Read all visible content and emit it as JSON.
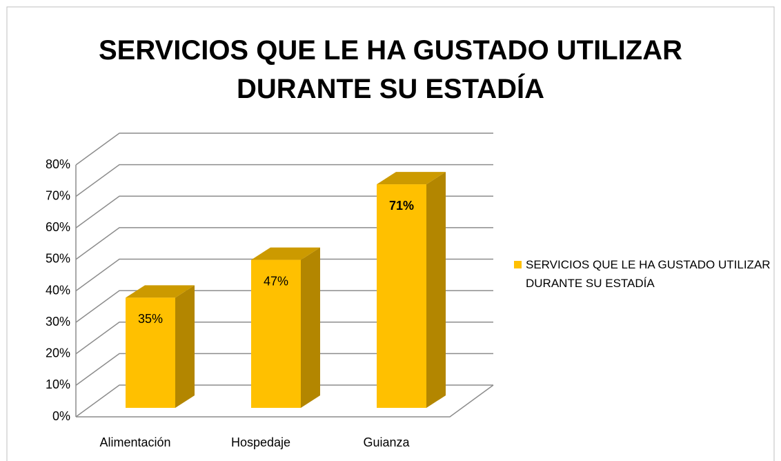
{
  "chart_data": {
    "type": "bar3d",
    "title": "SERVICIOS QUE LE HA GUSTADO UTILIZAR DURANTE SU ESTADÍA",
    "categories": [
      "Alimentación",
      "Hospedaje",
      "Guianza"
    ],
    "series": [
      {
        "name": "SERVICIOS QUE LE HA GUSTADO UTILIZAR DURANTE SU ESTADÍA",
        "color": "#FFC000",
        "values": [
          35,
          47,
          71
        ],
        "value_labels": [
          "35%",
          "47%",
          "71%"
        ]
      }
    ],
    "ylim": [
      0,
      80
    ],
    "yticks": [
      {
        "value": 0,
        "label": "0%"
      },
      {
        "value": 10,
        "label": "10%"
      },
      {
        "value": 20,
        "label": "20%"
      },
      {
        "value": 30,
        "label": "30%"
      },
      {
        "value": 40,
        "label": "40%"
      },
      {
        "value": 50,
        "label": "50%"
      },
      {
        "value": 60,
        "label": "60%"
      },
      {
        "value": 70,
        "label": "70%"
      },
      {
        "value": 80,
        "label": "80%"
      }
    ],
    "grid": true,
    "legend": "right"
  }
}
